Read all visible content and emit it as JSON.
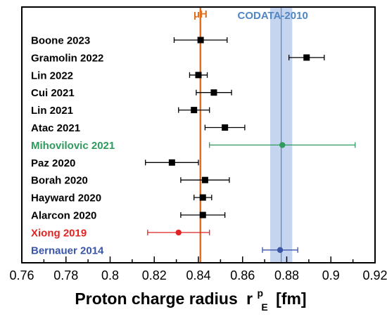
{
  "chart_data": {
    "type": "scatter",
    "xlabel": "Proton charge radius",
    "xlabel_symbol": "r",
    "xlabel_sup": "p",
    "xlabel_sub": "E",
    "xlabel_unit": "[fm]",
    "xlim": [
      0.76,
      0.92
    ],
    "xticks": [
      "0.76",
      "0.78",
      "0.8",
      "0.82",
      "0.84",
      "0.86",
      "0.88",
      "0.9",
      "0.92"
    ],
    "muH": {
      "label": "μH",
      "value": 0.8409,
      "color": "#e07020"
    },
    "codata": {
      "label": "CODATA-2010",
      "value": 0.8775,
      "lo": 0.8725,
      "hi": 0.8825,
      "color": "#4f86c6",
      "fill": "#c5d5f0"
    },
    "points": [
      {
        "label": "Boone 2023",
        "value": 0.841,
        "lo": 0.829,
        "hi": 0.853,
        "color": "#000000",
        "marker": "square"
      },
      {
        "label": "Gramolin 2022",
        "value": 0.889,
        "lo": 0.881,
        "hi": 0.897,
        "color": "#000000",
        "marker": "square"
      },
      {
        "label": "Lin 2022",
        "value": 0.84,
        "lo": 0.836,
        "hi": 0.844,
        "color": "#000000",
        "marker": "square"
      },
      {
        "label": "Cui 2021",
        "value": 0.847,
        "lo": 0.839,
        "hi": 0.855,
        "color": "#000000",
        "marker": "square"
      },
      {
        "label": "Lin 2021",
        "value": 0.838,
        "lo": 0.831,
        "hi": 0.845,
        "color": "#000000",
        "marker": "square"
      },
      {
        "label": "Atac 2021",
        "value": 0.852,
        "lo": 0.843,
        "hi": 0.861,
        "color": "#000000",
        "marker": "square"
      },
      {
        "label": "Mihovilovic 2021",
        "value": 0.878,
        "lo": 0.845,
        "hi": 0.911,
        "color": "#2e9a5e",
        "marker": "circle"
      },
      {
        "label": "Paz 2020",
        "value": 0.828,
        "lo": 0.816,
        "hi": 0.84,
        "color": "#000000",
        "marker": "square"
      },
      {
        "label": "Borah 2020",
        "value": 0.843,
        "lo": 0.832,
        "hi": 0.854,
        "color": "#000000",
        "marker": "square"
      },
      {
        "label": "Hayward 2020",
        "value": 0.842,
        "lo": 0.838,
        "hi": 0.846,
        "color": "#000000",
        "marker": "square"
      },
      {
        "label": "Alarcon 2020",
        "value": 0.842,
        "lo": 0.832,
        "hi": 0.852,
        "color": "#000000",
        "marker": "square"
      },
      {
        "label": "Xiong 2019",
        "value": 0.831,
        "lo": 0.817,
        "hi": 0.845,
        "color": "#e02424",
        "marker": "circle"
      },
      {
        "label": "Bernauer 2014",
        "value": 0.877,
        "lo": 0.869,
        "hi": 0.885,
        "color": "#3a55a8",
        "marker": "circle"
      }
    ]
  }
}
